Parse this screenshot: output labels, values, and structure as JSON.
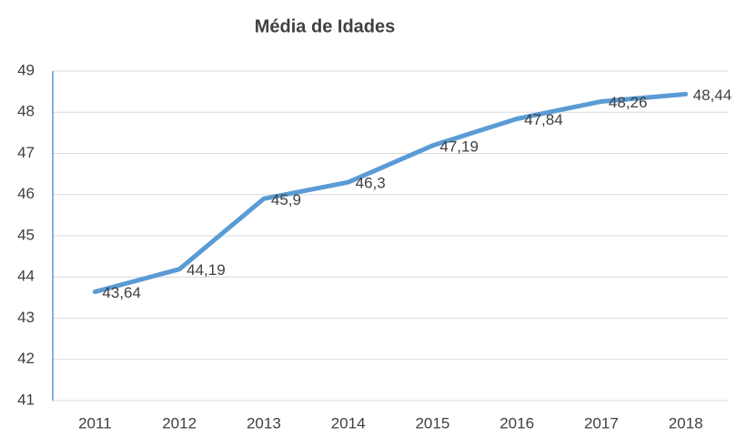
{
  "chart_data": {
    "type": "line",
    "title": "Média de Idades",
    "categories": [
      "2011",
      "2012",
      "2013",
      "2014",
      "2015",
      "2016",
      "2017",
      "2018"
    ],
    "values": [
      43.64,
      44.19,
      45.9,
      46.3,
      47.19,
      47.84,
      48.26,
      48.44
    ],
    "value_labels": [
      "43,64",
      "44,19",
      "45,9",
      "46,3",
      "47,19",
      "47,84",
      "48,26",
      "48,44"
    ],
    "color": "#5b9bd5",
    "ylim": [
      41,
      49
    ],
    "yticks": [
      41,
      42,
      43,
      44,
      45,
      46,
      47,
      48,
      49
    ],
    "grid": true
  }
}
